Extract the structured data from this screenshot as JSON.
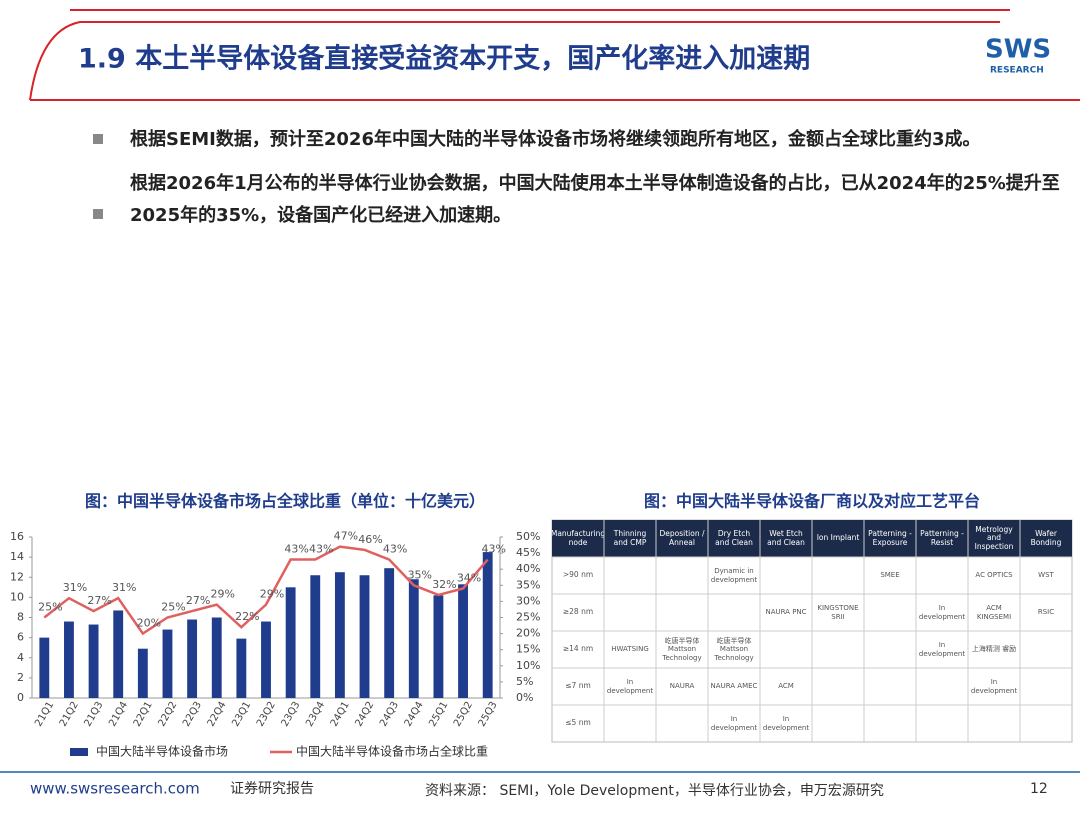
{
  "header": {
    "title": "1.9 本土半导体设备直接受益资本开支，国产化率进入加速期",
    "logo": "SWS",
    "logo_sub": "RESEARCH"
  },
  "bullets": [
    "根据SEMI数据，预计至2026年中国大陆的半导体设备市场将继续领跑所有地区，金额占全球比重约3成。",
    "根据2026年1月公布的半导体行业协会数据，中国大陆使用本土半导体制造设备的占比，已从2024年的25%提升至2025年的35%，设备国产化已经进入加速期。"
  ],
  "chart_data": {
    "type": "bar-line",
    "title": "图：中国半导体设备市场占全球比重（单位：十亿美元）",
    "categories": [
      "21Q1",
      "21Q2",
      "21Q3",
      "21Q4",
      "22Q1",
      "22Q2",
      "22Q3",
      "22Q4",
      "23Q1",
      "23Q2",
      "23Q3",
      "23Q4",
      "24Q1",
      "24Q2",
      "24Q3",
      "24Q4",
      "25Q1",
      "25Q2",
      "25Q3"
    ],
    "series": [
      {
        "name": "中国大陆半导体设备市场",
        "color": "#1f3d8c",
        "type": "bar",
        "values": [
          6.0,
          7.6,
          7.3,
          8.7,
          4.9,
          6.8,
          7.8,
          8.0,
          5.9,
          7.6,
          11.0,
          12.2,
          12.5,
          12.2,
          12.9,
          11.8,
          10.2,
          11.3,
          14.5
        ]
      },
      {
        "name": "中国大陆半导体设备市场占全球比重",
        "color": "#e06060",
        "type": "line",
        "axis": "y2",
        "values": [
          25,
          31,
          27,
          31,
          20,
          25,
          27,
          29,
          22,
          29,
          43,
          43,
          47,
          46,
          43,
          35,
          32,
          34,
          43
        ],
        "value_labels": [
          "25%",
          "31%",
          "27%",
          "31%",
          "20%",
          "25%",
          "27%",
          "29%",
          "22%",
          "29%",
          "43%",
          "43%",
          "47%",
          "46%",
          "43%",
          "35%",
          "32%",
          "34%",
          "43%"
        ]
      }
    ],
    "ylim": [
      0,
      16
    ],
    "yticks": [
      0,
      2,
      4,
      6,
      8,
      10,
      12,
      14,
      16
    ],
    "y2lim": [
      0,
      50
    ],
    "y2ticks": [
      {
        "value": 0,
        "label": "0%"
      },
      {
        "value": 5,
        "label": "5%"
      },
      {
        "value": 10,
        "label": "10%"
      },
      {
        "value": 15,
        "label": "15%"
      },
      {
        "value": 20,
        "label": "20%"
      },
      {
        "value": 25,
        "label": "25%"
      },
      {
        "value": 30,
        "label": "30%"
      },
      {
        "value": 35,
        "label": "35%"
      },
      {
        "value": 40,
        "label": "40%"
      },
      {
        "value": 45,
        "label": "45%"
      },
      {
        "value": 50,
        "label": "50%"
      }
    ]
  },
  "table": {
    "title": "图：中国大陆半导体设备厂商以及对应工艺平台",
    "header": [
      "Manufacturing node",
      "Thinning and CMP",
      "Deposition / Anneal",
      "Dry Etch and Clean",
      "Wet Etch and Clean",
      "Ion Implant",
      "Patterning - Exposure",
      "Patterning - Resist",
      "Metrology and Inspection",
      "Wafer Bonding"
    ],
    "rows": [
      [
        ">90 nm",
        null,
        null,
        "Dynamic in development",
        null,
        null,
        "SMEE",
        null,
        "AC OPTICS",
        "WST"
      ],
      [
        "≥28 nm",
        null,
        null,
        null,
        "NAURA PNC",
        "KINGSTONE SRII",
        null,
        "In development",
        "ACM KINGSEMI",
        "RSIC"
      ],
      [
        "≥14 nm",
        "HWATSING",
        "屹唐半导体 Mattson Technology",
        "屹唐半导体 Mattson Technology",
        null,
        null,
        null,
        "In development",
        "上海精测 睿励",
        null
      ],
      [
        "≤7 nm",
        "In development",
        "NAURA",
        "NAURA AMEC",
        "ACM",
        null,
        null,
        null,
        "In development",
        null
      ],
      [
        "≤5 nm",
        null,
        null,
        "In development",
        "In development",
        null,
        null,
        null,
        null,
        null
      ]
    ]
  },
  "footer": {
    "site": "www.swsresearch.com",
    "label": "证券研究报告",
    "source": "资料来源： SEMI，Yole Development，半导体行业协会，申万宏源研究",
    "page": "12"
  }
}
